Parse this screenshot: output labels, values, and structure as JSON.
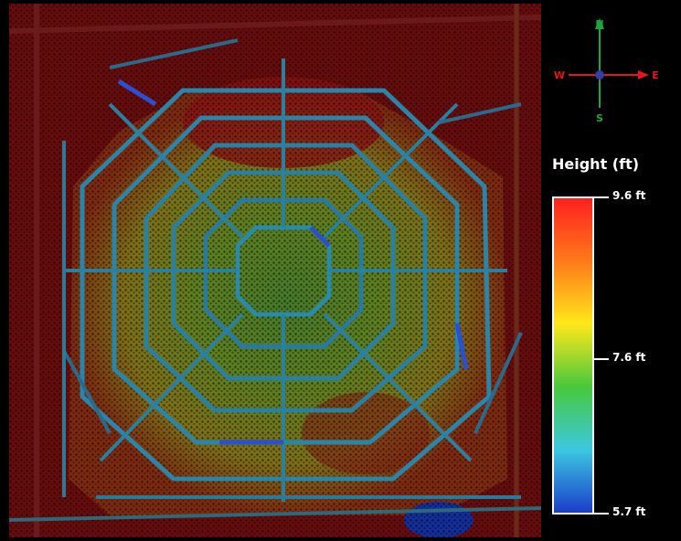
{
  "compass": {
    "north": "N",
    "south": "S",
    "east": "E",
    "west": "W"
  },
  "legend": {
    "title": "Height (ft)",
    "ticks": [
      {
        "label": "9.6 ft",
        "value": 9.6
      },
      {
        "label": "7.6 ft",
        "value": 7.6
      },
      {
        "label": "5.7 ft",
        "value": 5.7
      }
    ],
    "range": [
      5.7,
      9.6
    ],
    "colors": [
      "#ff2020",
      "#ff7a1a",
      "#ffe81a",
      "#48c83c",
      "#3cc8e0",
      "#1a3ccc"
    ]
  },
  "map": {
    "palette": {
      "high": "#c81414",
      "mid": "#7a9a1e",
      "low": "#2a6fb0",
      "road": "#1f7a9a"
    }
  }
}
